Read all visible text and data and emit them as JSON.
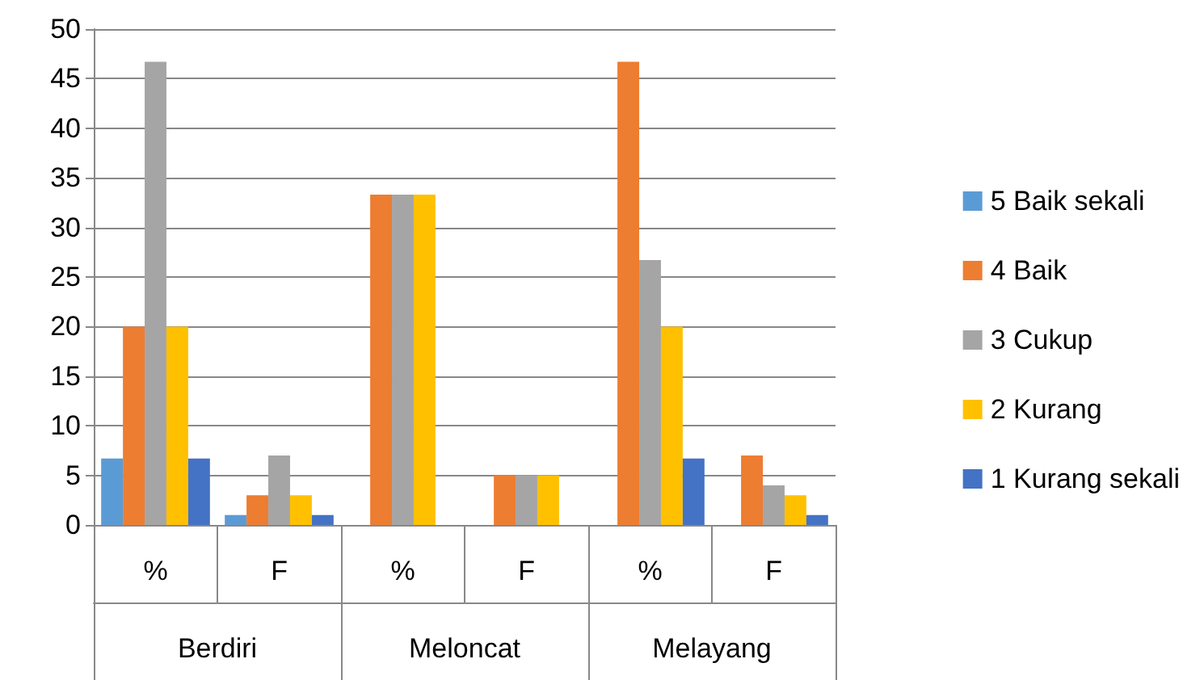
{
  "chart_data": {
    "type": "bar",
    "categories": [
      "%",
      "F",
      "%",
      "F",
      "%",
      "F"
    ],
    "annotations": [
      "Berdiri",
      "Meloncat",
      "Melayang"
    ],
    "series": [
      {
        "name": "5 Baik sekali",
        "color": "#5b9bd5",
        "values": [
          6.7,
          1,
          0,
          0,
          0,
          0
        ]
      },
      {
        "name": "4 Baik",
        "color": "#ed7d31",
        "values": [
          20,
          3,
          33.3,
          5,
          46.7,
          7
        ]
      },
      {
        "name": "3 Cukup",
        "color": "#a5a5a5",
        "values": [
          46.7,
          7,
          33.3,
          5,
          26.7,
          4
        ]
      },
      {
        "name": "2 Kurang",
        "color": "#ffc000",
        "values": [
          20,
          3,
          33.3,
          5,
          20,
          3
        ]
      },
      {
        "name": "1 Kurang sekali",
        "color": "#4472c4",
        "values": [
          6.7,
          1,
          0,
          0,
          6.7,
          1
        ]
      }
    ],
    "ylim": [
      0,
      50
    ],
    "yticks": [
      0,
      5,
      10,
      15,
      20,
      25,
      30,
      35,
      40,
      45,
      50
    ],
    "grid": "y",
    "legend": "right"
  }
}
